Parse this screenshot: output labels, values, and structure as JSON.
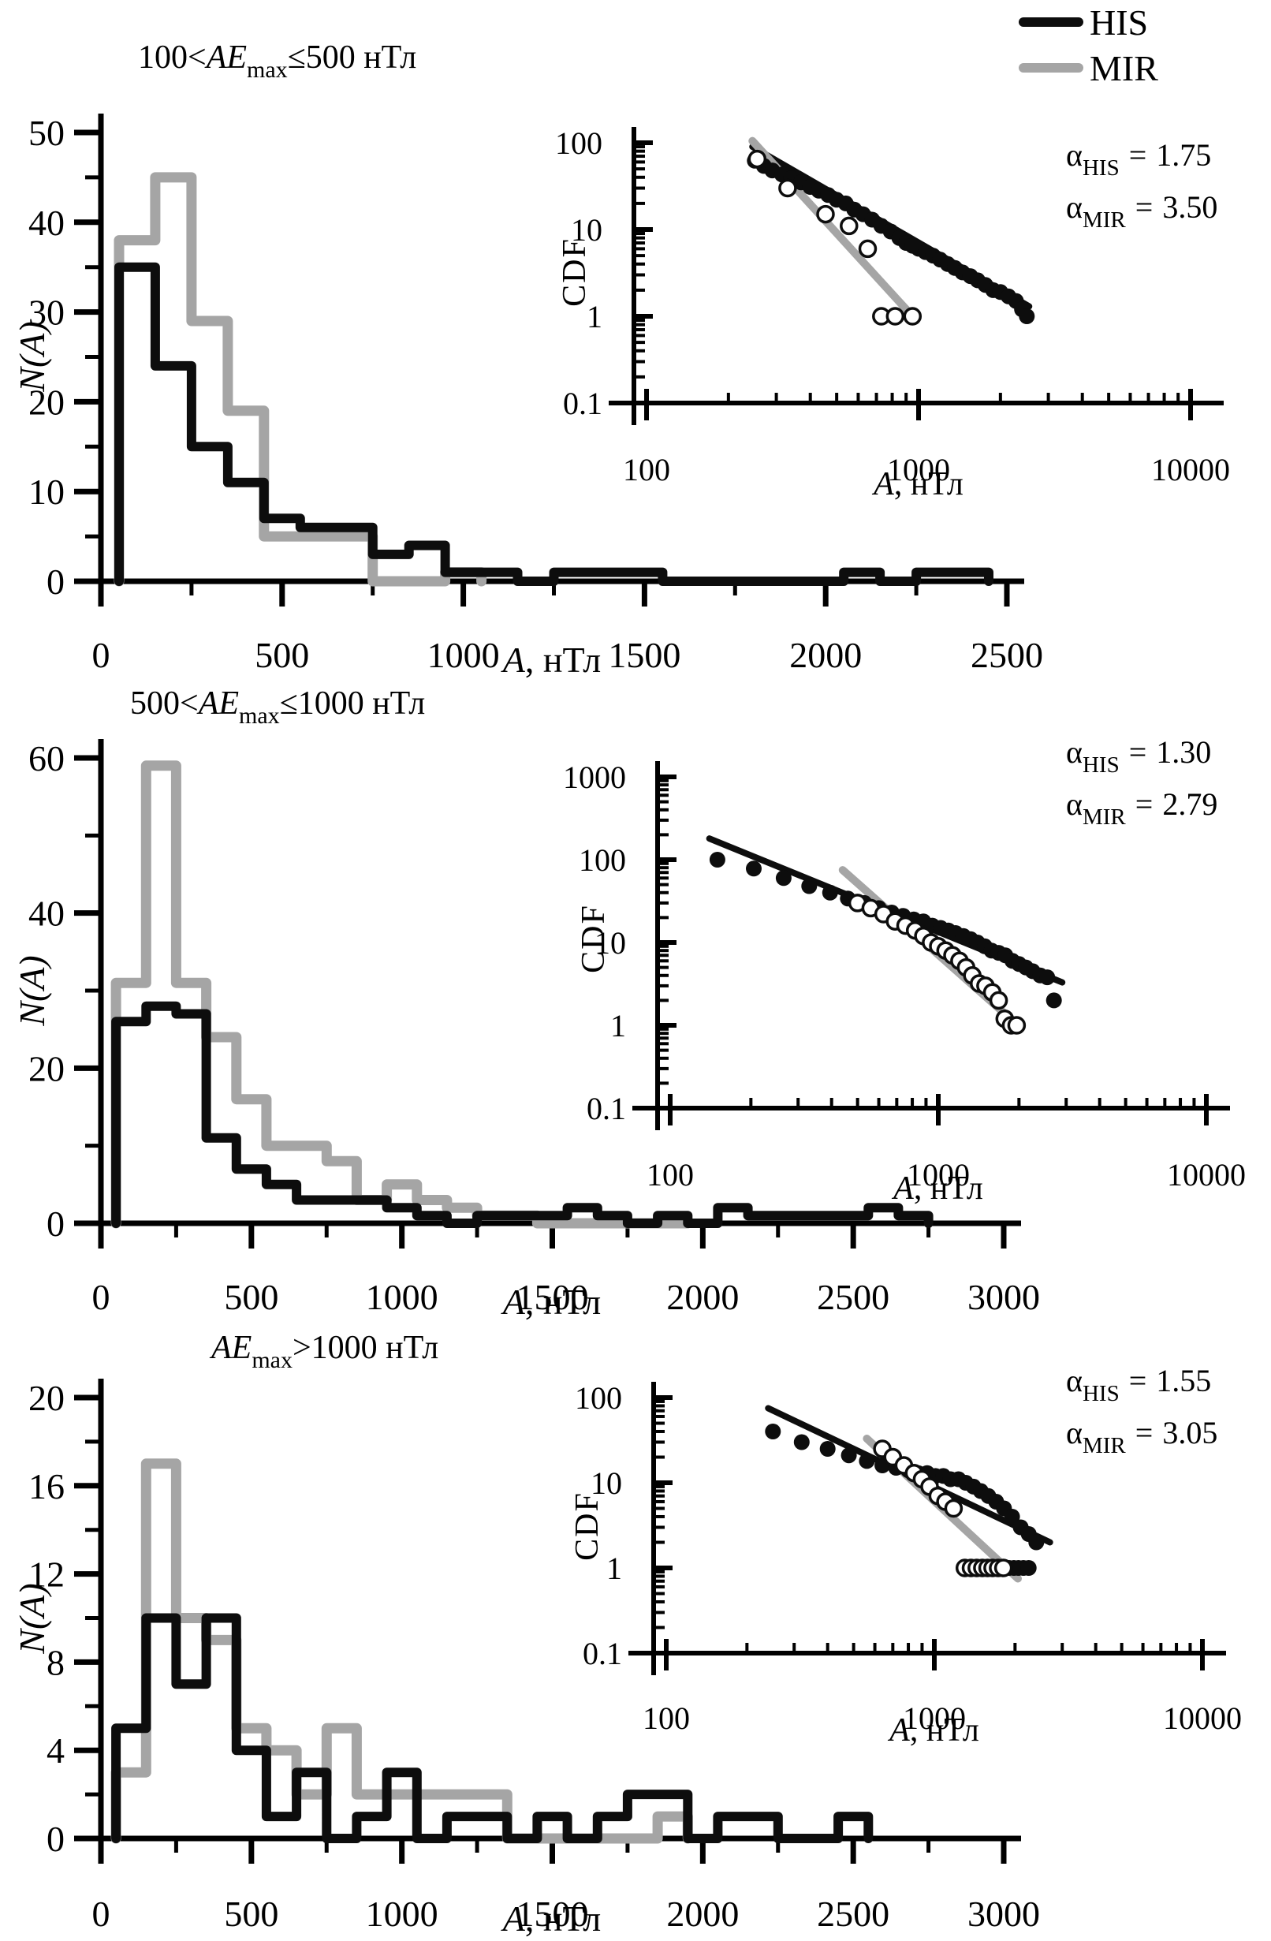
{
  "colors": {
    "his": "#0d0d0d",
    "mir": "#a5a5a5",
    "text": "#000000",
    "bg": "#ffffff"
  },
  "legend": {
    "items": [
      {
        "label": "HIS",
        "color_key": "his"
      },
      {
        "label": "MIR",
        "color_key": "mir"
      }
    ]
  },
  "labels": {
    "cdf": "CDF",
    "hist_y": "N(A)",
    "x_axis": {
      "it": "A",
      "rest": ", нТл"
    }
  },
  "chart_data": [
    {
      "type": "histogram_with_loglog_inset",
      "title_parts": {
        "pre": "100<",
        "core": "AE",
        "sub": "max",
        "post": "≤500 нТл"
      },
      "main": {
        "type": "step-histogram",
        "bin_start": 50,
        "bin_width": 100,
        "xlim": [
          0,
          2500
        ],
        "ylim": [
          0,
          50
        ],
        "x_tick_values": [
          0,
          500,
          1000,
          1500,
          2000,
          2500
        ],
        "x_tick_labels": [
          "0",
          "500",
          "1000",
          "1500",
          "2000",
          "2500"
        ],
        "x_minor_ticks": [
          250,
          750,
          1250,
          1750,
          2250
        ],
        "y_tick_values": [
          0,
          10,
          20,
          30,
          40,
          50
        ],
        "y_tick_labels": [
          "0",
          "10",
          "20",
          "30",
          "40",
          "50"
        ],
        "y_minor_ticks": [
          5,
          15,
          25,
          35,
          45
        ],
        "series": [
          {
            "name": "HIS",
            "color_key": "his",
            "values": [
              35,
              24,
              15,
              11,
              7,
              6,
              6,
              3,
              4,
              1,
              1,
              0,
              1,
              1,
              1,
              0,
              0,
              0,
              0,
              0,
              1,
              0,
              1,
              1
            ]
          },
          {
            "name": "MIR",
            "color_key": "mir",
            "values": [
              38,
              45,
              29,
              19,
              5,
              5,
              5,
              0,
              0,
              1
            ]
          }
        ]
      },
      "inset": {
        "type": "scatter-loglog",
        "xlim": [
          100,
          10000
        ],
        "ylim": [
          0.1,
          100
        ],
        "x_tick_labels": [
          "100",
          "1000",
          "10000"
        ],
        "y_tick_labels": [
          "0.1",
          "1",
          "10",
          "100"
        ],
        "his_points": [
          [
            250,
            62
          ],
          [
            270,
            54
          ],
          [
            290,
            48
          ],
          [
            315,
            43
          ],
          [
            340,
            39
          ],
          [
            370,
            35
          ],
          [
            400,
            31
          ],
          [
            430,
            28
          ],
          [
            465,
            25
          ],
          [
            500,
            22
          ],
          [
            540,
            20
          ],
          [
            580,
            17
          ],
          [
            625,
            15
          ],
          [
            675,
            13
          ],
          [
            730,
            11
          ],
          [
            790,
            9.5
          ],
          [
            850,
            8
          ],
          [
            900,
            7
          ],
          [
            950,
            6.5
          ],
          [
            1000,
            6
          ],
          [
            1060,
            5.5
          ],
          [
            1130,
            5
          ],
          [
            1200,
            4.5
          ],
          [
            1280,
            4
          ],
          [
            1360,
            3.6
          ],
          [
            1450,
            3.2
          ],
          [
            1550,
            2.9
          ],
          [
            1650,
            2.6
          ],
          [
            1760,
            2.3
          ],
          [
            1880,
            2
          ],
          [
            2000,
            1.9
          ],
          [
            2140,
            1.7
          ],
          [
            2280,
            1.5
          ],
          [
            2400,
            1.2
          ],
          [
            2500,
            1
          ]
        ],
        "mir_points": [
          [
            255,
            65
          ],
          [
            330,
            30
          ],
          [
            455,
            15
          ],
          [
            555,
            11
          ],
          [
            650,
            6
          ],
          [
            730,
            1
          ],
          [
            820,
            1
          ],
          [
            950,
            1
          ]
        ],
        "his_fit": [
          [
            245,
            90
          ],
          [
            2550,
            1.3
          ]
        ],
        "mir_fit": [
          [
            245,
            105
          ],
          [
            980,
            0.9
          ]
        ],
        "alpha_his": {
          "sym": "α",
          "sub": "HIS",
          "eq": "=",
          "value": "1.75"
        },
        "alpha_mir": {
          "sym": "α",
          "sub": "MIR",
          "eq": "=",
          "value": "3.50"
        }
      }
    },
    {
      "type": "histogram_with_loglog_inset",
      "title_parts": {
        "pre": "500<",
        "core": "AE",
        "sub": "max",
        "post": "≤1000 нТл"
      },
      "main": {
        "type": "step-histogram",
        "bin_start": 50,
        "bin_width": 100,
        "xlim": [
          0,
          3000
        ],
        "ylim": [
          0,
          60
        ],
        "x_tick_values": [
          0,
          500,
          1000,
          1500,
          2000,
          2500,
          3000
        ],
        "x_tick_labels": [
          "0",
          "500",
          "1000",
          "1500",
          "2000",
          "2500",
          "3000"
        ],
        "x_minor_ticks": [
          250,
          750,
          1250,
          1750,
          2250,
          2750
        ],
        "y_tick_values": [
          0,
          20,
          40,
          60
        ],
        "y_tick_labels": [
          "0",
          "20",
          "40",
          "60"
        ],
        "y_minor_ticks": [
          10,
          30,
          50
        ],
        "series": [
          {
            "name": "HIS",
            "color_key": "his",
            "values": [
              26,
              28,
              27,
              11,
              7,
              5,
              3,
              3,
              3,
              2,
              1,
              0,
              1,
              1,
              1,
              2,
              1,
              0,
              1,
              0,
              2,
              1,
              1,
              1,
              1,
              2,
              1
            ]
          },
          {
            "name": "MIR",
            "color_key": "mir",
            "values": [
              31,
              59,
              31,
              24,
              16,
              10,
              10,
              8,
              3,
              5,
              3,
              2,
              1,
              1,
              0,
              0,
              0,
              0,
              0
            ]
          }
        ]
      },
      "inset": {
        "type": "scatter-loglog",
        "xlim": [
          100,
          10000
        ],
        "ylim": [
          0.1,
          1000
        ],
        "x_tick_labels": [
          "100",
          "1000",
          "10000"
        ],
        "y_tick_labels": [
          "0.1",
          "1",
          "10",
          "100",
          "1000"
        ],
        "his_points": [
          [
            150,
            100
          ],
          [
            205,
            78
          ],
          [
            265,
            60
          ],
          [
            330,
            48
          ],
          [
            395,
            40
          ],
          [
            460,
            34
          ],
          [
            530,
            30
          ],
          [
            600,
            26
          ],
          [
            670,
            23
          ],
          [
            740,
            21
          ],
          [
            810,
            19
          ],
          [
            880,
            18
          ],
          [
            950,
            16
          ],
          [
            1020,
            15
          ],
          [
            1090,
            14
          ],
          [
            1160,
            13
          ],
          [
            1240,
            12
          ],
          [
            1320,
            11
          ],
          [
            1400,
            10
          ],
          [
            1490,
            9
          ],
          [
            1580,
            8
          ],
          [
            1680,
            7.5
          ],
          [
            1780,
            7
          ],
          [
            1890,
            6
          ],
          [
            2000,
            5.5
          ],
          [
            2120,
            5
          ],
          [
            2250,
            4.5
          ],
          [
            2400,
            4
          ],
          [
            2550,
            3.8
          ],
          [
            2700,
            2
          ]
        ],
        "mir_points": [
          [
            500,
            30
          ],
          [
            560,
            26
          ],
          [
            625,
            22
          ],
          [
            690,
            18
          ],
          [
            755,
            16
          ],
          [
            820,
            14
          ],
          [
            880,
            12
          ],
          [
            940,
            10
          ],
          [
            1000,
            9
          ],
          [
            1065,
            8
          ],
          [
            1130,
            7
          ],
          [
            1200,
            6
          ],
          [
            1270,
            5
          ],
          [
            1340,
            4
          ],
          [
            1420,
            3.2
          ],
          [
            1500,
            3
          ],
          [
            1590,
            2.5
          ],
          [
            1680,
            2
          ],
          [
            1770,
            1.2
          ],
          [
            1870,
            1
          ],
          [
            1960,
            1
          ]
        ],
        "his_fit": [
          [
            140,
            180
          ],
          [
            2900,
            3.3
          ]
        ],
        "mir_fit": [
          [
            440,
            75
          ],
          [
            1950,
            1.05
          ]
        ],
        "alpha_his": {
          "sym": "α",
          "sub": "HIS",
          "eq": "=",
          "value": "1.30"
        },
        "alpha_mir": {
          "sym": "α",
          "sub": "MIR",
          "eq": "=",
          "value": "2.79"
        }
      }
    },
    {
      "type": "histogram_with_loglog_inset",
      "title_parts": {
        "pre": "",
        "core": "AE",
        "sub": "max",
        "post": ">1000 нТл"
      },
      "main": {
        "type": "step-histogram",
        "bin_start": 50,
        "bin_width": 100,
        "xlim": [
          0,
          3000
        ],
        "ylim": [
          0,
          20
        ],
        "x_tick_values": [
          0,
          500,
          1000,
          1500,
          2000,
          2500,
          3000
        ],
        "x_tick_labels": [
          "0",
          "500",
          "1000",
          "1500",
          "2000",
          "2500",
          "3000"
        ],
        "x_minor_ticks": [
          250,
          750,
          1250,
          1750,
          2250,
          2750
        ],
        "y_tick_values": [
          0,
          4,
          8,
          12,
          16,
          20
        ],
        "y_tick_labels": [
          "0",
          "4",
          "8",
          "12",
          "16",
          "20"
        ],
        "y_minor_ticks": [
          2,
          6,
          10,
          14,
          18
        ],
        "series": [
          {
            "name": "HIS",
            "color_key": "his",
            "values": [
              5,
              10,
              7,
              10,
              4,
              1,
              3,
              0,
              1,
              3,
              0,
              1,
              1,
              0,
              1,
              0,
              1,
              2,
              2,
              0,
              1,
              1,
              0,
              0,
              1
            ]
          },
          {
            "name": "MIR",
            "color_key": "mir",
            "values": [
              3,
              17,
              10,
              9,
              5,
              4,
              2,
              5,
              2,
              2,
              2,
              2,
              2,
              0,
              0,
              0,
              0,
              0,
              1
            ]
          }
        ]
      },
      "inset": {
        "type": "scatter-loglog",
        "xlim": [
          100,
          10000
        ],
        "ylim": [
          0.1,
          100
        ],
        "x_tick_labels": [
          "100",
          "1000",
          "10000"
        ],
        "y_tick_labels": [
          "0.1",
          "1",
          "10",
          "100"
        ],
        "his_points": [
          [
            250,
            40
          ],
          [
            320,
            30
          ],
          [
            400,
            25
          ],
          [
            480,
            21
          ],
          [
            560,
            18
          ],
          [
            640,
            16
          ],
          [
            720,
            15
          ],
          [
            800,
            14
          ],
          [
            870,
            13
          ],
          [
            940,
            13
          ],
          [
            1010,
            12
          ],
          [
            1080,
            12
          ],
          [
            1150,
            11
          ],
          [
            1230,
            11
          ],
          [
            1310,
            10
          ],
          [
            1400,
            9
          ],
          [
            1490,
            8
          ],
          [
            1590,
            7
          ],
          [
            1700,
            6
          ],
          [
            1820,
            5
          ],
          [
            1950,
            4
          ],
          [
            2100,
            3
          ],
          [
            2250,
            2.5
          ],
          [
            2400,
            2
          ],
          [
            1900,
            1
          ],
          [
            1980,
            1
          ],
          [
            2060,
            1
          ],
          [
            2150,
            1
          ],
          [
            2250,
            1
          ]
        ],
        "mir_points": [
          [
            640,
            25
          ],
          [
            700,
            20
          ],
          [
            770,
            16
          ],
          [
            840,
            13
          ],
          [
            900,
            11
          ],
          [
            960,
            9
          ],
          [
            1030,
            7
          ],
          [
            1100,
            6
          ],
          [
            1180,
            5
          ],
          [
            1300,
            1
          ],
          [
            1370,
            1
          ],
          [
            1440,
            1
          ],
          [
            1510,
            1
          ],
          [
            1580,
            1
          ],
          [
            1650,
            1
          ],
          [
            1730,
            1
          ],
          [
            1810,
            1
          ]
        ],
        "his_fit": [
          [
            240,
            75
          ],
          [
            2700,
            2
          ]
        ],
        "mir_fit": [
          [
            560,
            33
          ],
          [
            2050,
            0.75
          ]
        ],
        "alpha_his": {
          "sym": "α",
          "sub": "HIS",
          "eq": "=",
          "value": "1.55"
        },
        "alpha_mir": {
          "sym": "α",
          "sub": "MIR",
          "eq": "=",
          "value": "3.05"
        }
      }
    }
  ]
}
